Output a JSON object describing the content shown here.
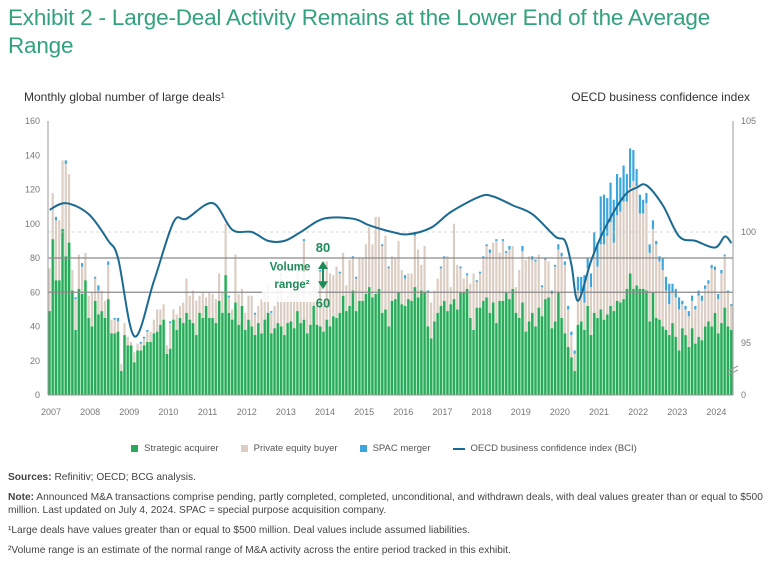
{
  "title": "Exhibit 2 - Large-Deal Activity Remains at the Lower End of the Average Range",
  "left_axis_title": "Monthly global number of large deals¹",
  "right_axis_title": "OECD business confidence index",
  "legend": [
    {
      "label": "Strategic acquirer",
      "color": "#2aa85c"
    },
    {
      "label": "Private equity buyer",
      "color": "#dccdc3"
    },
    {
      "label": "SPAC merger",
      "color": "#3aa6dd"
    },
    {
      "label": "OECD business confidence index (BCI)",
      "color": "#1b6a92"
    }
  ],
  "annotation": {
    "upper": "80",
    "lower": "60",
    "label_line1": "Volume",
    "label_line2": "range²"
  },
  "notes": {
    "sources_label": "Sources:",
    "sources_text": " Refinitiv; OECD; BCG analysis.",
    "note_label": "Note:",
    "note_text": " Announced M&A transactions comprise pending, partly completed, completed, unconditional, and withdrawn deals, with deal values greater than or equal to $500 million. Last updated on July 4, 2024. SPAC = special purpose acquisition company.",
    "footnote1": "¹Large deals have values greater than or equal to $500 million. Deal values include assumed liabilities.",
    "footnote2": "²Volume range is an estimate of the normal range of M&A activity across the entire period tracked in this exhibit."
  },
  "chart_data": {
    "type": "bar",
    "stacked": true,
    "title": "Exhibit 2 - Large-Deal Activity Remains at the Lower End of the Average Range",
    "ylabel": "Monthly global number of large deals",
    "y2label": "OECD business confidence index",
    "ylim": [
      0,
      160
    ],
    "yticks": [
      0,
      20,
      40,
      60,
      80,
      100,
      120,
      140,
      160
    ],
    "y2ticks": [
      0,
      95,
      100,
      105
    ],
    "y2_scale": {
      "min": 95,
      "max": 105,
      "break_to_zero": true
    },
    "xticks": [
      "2007",
      "2008",
      "2009",
      "2010",
      "2011",
      "2012",
      "2013",
      "2014",
      "2015",
      "2016",
      "2017",
      "2018",
      "2019",
      "2020",
      "2021",
      "2022",
      "2023",
      "2024"
    ],
    "start": "2007-01",
    "end": "2024-06",
    "reference_lines": [
      {
        "value": 80,
        "style": "solid"
      },
      {
        "value": 60,
        "style": "solid"
      }
    ],
    "reference_line_bci_100": {
      "value": 100,
      "style": "dashed"
    },
    "series_by_year": {
      "strategic": {
        "2007": [
          49,
          91,
          67,
          67,
          97,
          81,
          89,
          61,
          38,
          62,
          59,
          67
        ],
        "2008": [
          45,
          40,
          55,
          47,
          49,
          45,
          56,
          36,
          36,
          37,
          14,
          35
        ],
        "2009": [
          29,
          29,
          19,
          26,
          26,
          29,
          31,
          31,
          36,
          37,
          41,
          44
        ],
        "2010": [
          24,
          27,
          44,
          38,
          45,
          42,
          48,
          44,
          42,
          35,
          48,
          45
        ],
        "2011": [
          52,
          45,
          45,
          42,
          55,
          48,
          70,
          48,
          44,
          54,
          41,
          52
        ],
        "2012": [
          38,
          44,
          40,
          35,
          42,
          36,
          44,
          48,
          36,
          39,
          42,
          40
        ],
        "2013": [
          35,
          42,
          43,
          39,
          49,
          42,
          44,
          36,
          41,
          52,
          41,
          40
        ],
        "2014": [
          37,
          44,
          40,
          46,
          45,
          48,
          58,
          49,
          52,
          61,
          49,
          55
        ],
        "2015": [
          55,
          59,
          63,
          57,
          59,
          62,
          48,
          50,
          40,
          55,
          56,
          60
        ],
        "2016": [
          53,
          52,
          56,
          55,
          63,
          57,
          61,
          60,
          40,
          33,
          43,
          48
        ],
        "2017": [
          52,
          55,
          49,
          53,
          56,
          50,
          60,
          60,
          62,
          45,
          38,
          51
        ],
        "2018": [
          51,
          55,
          57,
          48,
          54,
          42,
          55,
          55,
          60,
          56,
          62,
          48
        ],
        "2019": [
          45,
          54,
          37,
          43,
          48,
          40,
          51,
          46,
          56,
          57,
          39,
          43
        ],
        "2020": [
          60,
          45,
          36,
          28,
          22,
          14,
          41,
          43,
          38,
          52,
          35,
          48
        ],
        "2021": [
          45,
          50,
          44,
          47,
          52,
          49,
          55,
          54,
          56,
          62,
          71,
          62
        ],
        "2022": [
          64,
          62,
          62,
          61,
          43,
          60,
          45,
          44,
          40,
          38,
          35,
          42
        ],
        "2023": [
          34,
          26,
          39,
          35,
          28,
          39,
          30,
          34,
          32,
          40,
          43,
          40
        ],
        "2024": [
          48,
          36,
          42,
          51,
          40,
          38
        ]
      },
      "private_equity": {
        "2007": [
          25,
          27,
          35,
          35,
          40,
          54,
          40,
          12,
          18,
          20,
          16,
          16
        ],
        "2008": [
          13,
          20,
          13,
          14,
          12,
          10,
          20,
          8,
          8,
          6,
          4,
          7
        ],
        "2009": [
          5,
          2,
          6,
          4,
          4,
          4,
          6,
          6,
          8,
          13,
          9,
          9
        ],
        "2010": [
          5,
          15,
          6,
          9,
          7,
          12,
          20,
          14,
          19,
          20,
          10,
          15
        ],
        "2011": [
          5,
          15,
          14,
          14,
          16,
          12,
          30,
          9,
          6,
          28,
          18,
          10
        ],
        "2012": [
          10,
          14,
          18,
          12,
          10,
          20,
          16,
          17,
          12,
          13,
          20,
          30
        ],
        "2013": [
          20,
          16,
          22,
          26,
          23,
          14,
          46,
          19,
          19,
          13,
          20,
          32
        ],
        "2014": [
          15,
          34,
          31,
          24,
          30,
          23,
          25,
          15,
          27,
          19,
          19,
          25
        ],
        "2015": [
          25,
          29,
          35,
          31,
          45,
          42,
          39,
          43,
          34,
          26,
          24,
          30
        ],
        "2016": [
          20,
          16,
          15,
          16,
          30,
          28,
          15,
          27,
          20,
          21,
          18,
          20
        ],
        "2017": [
          22,
          25,
          32,
          10,
          44,
          26,
          14,
          8,
          8,
          20,
          33,
          15
        ],
        "2018": [
          20,
          25,
          30,
          35,
          35,
          48,
          28,
          35,
          23,
          29,
          25,
          15
        ],
        "2019": [
          28,
          30,
          42,
          38,
          31,
          38,
          31,
          17,
          23,
          21,
          20,
          32
        ],
        "2020": [
          25,
          36,
          40,
          22,
          13,
          10,
          20,
          16,
          16,
          22,
          28,
          35
        ],
        "2021": [
          30,
          38,
          44,
          46,
          49,
          40,
          50,
          53,
          57,
          51,
          50,
          63
        ],
        "2022": [
          58,
          44,
          44,
          51,
          40,
          37,
          43,
          34,
          33,
          23,
          18,
          18
        ],
        "2023": [
          23,
          24,
          14,
          15,
          18,
          16,
          20,
          24,
          23,
          22,
          22,
          34
        ],
        "2024": [
          25,
          20,
          29,
          30,
          20,
          14
        ]
      },
      "spac": {
        "2007": [
          0,
          0,
          2,
          0,
          0,
          2,
          0,
          0,
          1,
          0,
          2,
          0
        ],
        "2008": [
          0,
          0,
          1,
          3,
          0,
          0,
          2,
          0,
          1,
          2,
          0,
          0
        ],
        "2009": [
          0,
          0,
          0,
          0,
          1,
          1,
          1,
          0,
          0,
          0,
          0,
          0
        ],
        "2010": [
          0,
          1,
          0,
          0,
          0,
          0,
          0,
          0,
          0,
          0,
          0,
          0
        ],
        "2011": [
          0,
          0,
          0,
          0,
          0,
          0,
          0,
          1,
          0,
          0,
          0,
          0
        ],
        "2012": [
          0,
          0,
          0,
          1,
          0,
          0,
          0,
          0,
          1,
          0,
          0,
          1
        ],
        "2013": [
          0,
          0,
          0,
          0,
          0,
          0,
          1,
          0,
          0,
          0,
          0,
          1
        ],
        "2014": [
          0,
          0,
          0,
          0,
          0,
          1,
          0,
          0,
          0,
          1,
          1,
          0
        ],
        "2015": [
          0,
          0,
          0,
          0,
          0,
          0,
          1,
          0,
          1,
          0,
          0,
          0
        ],
        "2016": [
          0,
          2,
          0,
          0,
          1,
          0,
          0,
          0,
          1,
          0,
          0,
          0
        ],
        "2017": [
          1,
          1,
          0,
          0,
          0,
          0,
          1,
          0,
          1,
          0,
          0,
          1
        ],
        "2018": [
          1,
          1,
          1,
          2,
          0,
          1,
          0,
          1,
          1,
          2,
          0,
          0
        ],
        "2019": [
          0,
          3,
          0,
          0,
          2,
          1,
          0,
          1,
          1,
          0,
          2,
          1
        ],
        "2020": [
          3,
          2,
          2,
          2,
          2,
          2,
          8,
          10,
          16,
          6,
          8,
          12
        ],
        "2021": [
          14,
          28,
          29,
          22,
          23,
          25,
          24,
          20,
          21,
          16,
          23,
          18
        ],
        "2022": [
          10,
          11,
          8,
          6,
          5,
          5,
          2,
          3,
          7,
          8,
          12,
          5
        ],
        "2023": [
          5,
          7,
          2,
          2,
          3,
          3,
          2,
          3,
          3,
          2,
          2,
          2
        ],
        "2024": [
          2,
          3,
          2,
          1,
          1,
          1
        ]
      }
    },
    "bci_series": [
      {
        "t": "2007-01",
        "v": 101.0
      },
      {
        "t": "2007-06",
        "v": 101.3
      },
      {
        "t": "2008-01",
        "v": 100.8
      },
      {
        "t": "2008-07",
        "v": 99.6
      },
      {
        "t": "2008-10",
        "v": 98.8
      },
      {
        "t": "2009-03",
        "v": 95.3
      },
      {
        "t": "2009-09",
        "v": 97.8
      },
      {
        "t": "2010-03",
        "v": 100.45
      },
      {
        "t": "2010-07",
        "v": 100.6
      },
      {
        "t": "2011-03",
        "v": 101.3
      },
      {
        "t": "2011-09",
        "v": 100.1
      },
      {
        "t": "2012-03",
        "v": 100.0
      },
      {
        "t": "2012-08",
        "v": 99.6
      },
      {
        "t": "2013-01",
        "v": 99.6
      },
      {
        "t": "2013-06",
        "v": 100.0
      },
      {
        "t": "2014-01",
        "v": 100.6
      },
      {
        "t": "2014-10",
        "v": 100.6
      },
      {
        "t": "2015-03",
        "v": 100.3
      },
      {
        "t": "2015-10",
        "v": 100.0
      },
      {
        "t": "2016-03",
        "v": 99.9
      },
      {
        "t": "2016-10",
        "v": 100.2
      },
      {
        "t": "2017-04",
        "v": 100.9
      },
      {
        "t": "2018-01",
        "v": 101.6
      },
      {
        "t": "2018-05",
        "v": 101.6
      },
      {
        "t": "2018-11",
        "v": 101.2
      },
      {
        "t": "2019-05",
        "v": 100.8
      },
      {
        "t": "2019-12",
        "v": 99.8
      },
      {
        "t": "2020-03",
        "v": 99.6
      },
      {
        "t": "2020-05",
        "v": 98.5
      },
      {
        "t": "2020-07",
        "v": 96.9
      },
      {
        "t": "2020-11",
        "v": 98.7
      },
      {
        "t": "2021-03",
        "v": 100.1
      },
      {
        "t": "2021-09",
        "v": 101.6
      },
      {
        "t": "2022-01",
        "v": 102.0
      },
      {
        "t": "2022-04",
        "v": 102.1
      },
      {
        "t": "2022-09",
        "v": 101.2
      },
      {
        "t": "2023-02",
        "v": 99.8
      },
      {
        "t": "2023-07",
        "v": 99.6
      },
      {
        "t": "2024-01",
        "v": 99.3
      },
      {
        "t": "2024-04",
        "v": 99.8
      },
      {
        "t": "2024-06",
        "v": 99.5
      }
    ]
  }
}
